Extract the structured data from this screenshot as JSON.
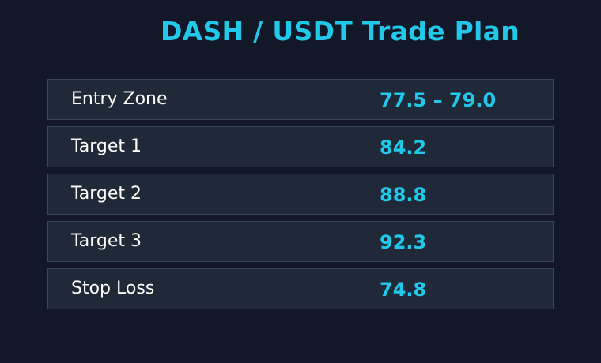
{
  "title": "DASH / USDT Trade Plan",
  "accent_color": "#22c8ea",
  "rows": [
    {
      "label": "Entry Zone",
      "value": "77.5 – 79.0"
    },
    {
      "label": "Target 1",
      "value": "84.2"
    },
    {
      "label": "Target 2",
      "value": "88.8"
    },
    {
      "label": "Target 3",
      "value": "92.3"
    },
    {
      "label": "Stop Loss",
      "value": "74.8"
    }
  ]
}
